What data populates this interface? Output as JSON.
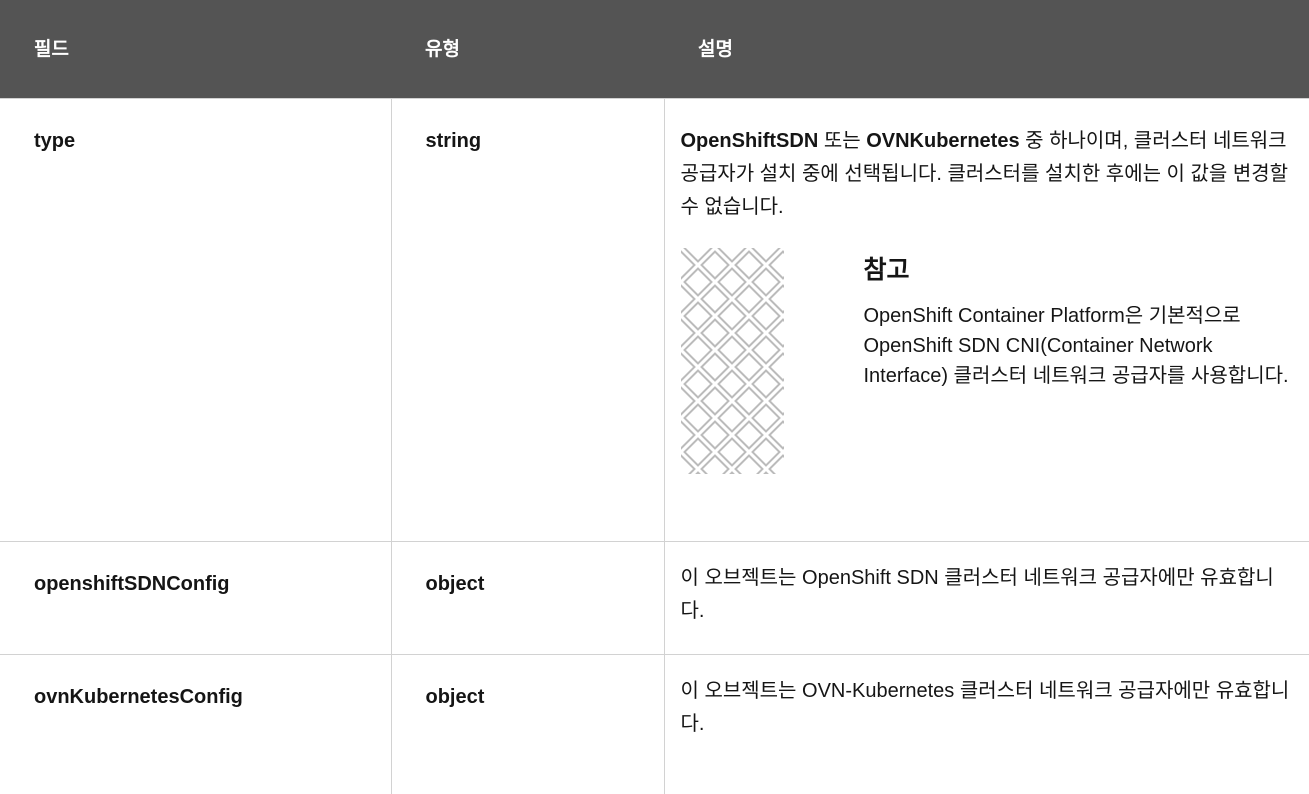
{
  "table": {
    "header": [
      "필드",
      "유형",
      "설명"
    ],
    "rows": [
      {
        "field": "type",
        "type": "string",
        "description": [
          "OpenShiftSDN",
          " 또는 ",
          "OVNKubernetes",
          " 중 하나이며, 클러스터 네트워크 공급자가 설치 중에 선택됩니다. 클러스터를 설치한 후에는 이 값을 변경할 수 없습니다."
        ],
        "note": {
          "title": "참고",
          "text": "OpenShift Container Platform은 기본적으로 OpenShift SDN CNI(Container Network Interface) 클러스터 네트워크 공급자를 사용합니다."
        }
      },
      {
        "field": "openshiftSDNConfig",
        "type": "object",
        "description": [
          "이 오브젝트는 OpenShift SDN 클러스터 네트워크 공급자에만 유효합니다."
        ]
      },
      {
        "field": "ovnKubernetesConfig",
        "type": "object",
        "description": [
          "이 오브젝트는 OVN-Kubernetes 클러스터 네트워크 공급자에만 유효합니다."
        ]
      }
    ]
  }
}
